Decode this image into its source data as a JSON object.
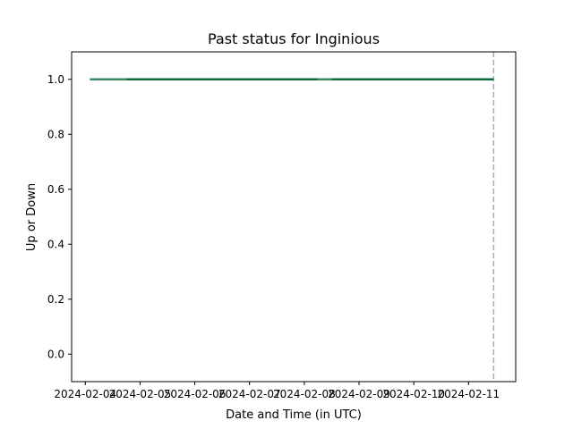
{
  "chart_data": {
    "type": "line",
    "title": "Past status for Inginious",
    "xlabel": "Date and Time (in UTC)",
    "ylabel": "Up or Down",
    "xlim": [
      "2024-02-03T18:00:00",
      "2024-02-11T20:40:00"
    ],
    "ylim": [
      -0.1,
      1.1
    ],
    "x_ticks": [
      "2024-02-04",
      "2024-02-05",
      "2024-02-06",
      "2024-02-07",
      "2024-02-08",
      "2024-02-09",
      "2024-02-10",
      "2024-02-11"
    ],
    "y_ticks": [
      "0.0",
      "0.2",
      "0.4",
      "0.6",
      "0.8",
      "1.0"
    ],
    "grid": false,
    "vline": {
      "x": "2024-02-11T11:00:00",
      "style": "dashed"
    },
    "series": [
      {
        "color": "#0b6e3a",
        "segments": [
          {
            "x": [
              "2024-02-04T02:00:00",
              "2024-02-04T18:00:00"
            ],
            "y": [
              1,
              1
            ],
            "color": "#3a8a66"
          },
          {
            "x": [
              "2024-02-04T18:00:00",
              "2024-02-08T06:00:00"
            ],
            "y": [
              1,
              1
            ],
            "color": "#0b6e3a"
          },
          {
            "x": [
              "2024-02-08T06:00:00",
              "2024-02-08T12:00:00"
            ],
            "y": [
              1,
              1
            ],
            "color": "#3a8a66"
          },
          {
            "x": [
              "2024-02-08T12:00:00",
              "2024-02-11T11:00:00"
            ],
            "y": [
              1,
              1
            ],
            "color": "#0b6e3a"
          }
        ]
      }
    ]
  }
}
